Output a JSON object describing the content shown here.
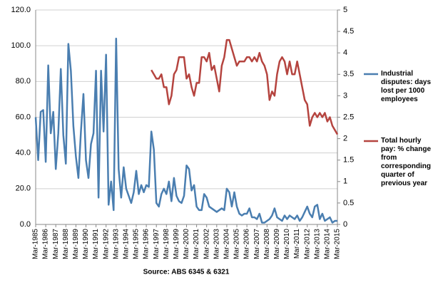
{
  "chart_data": {
    "type": "line",
    "source": "Source: ABS 6345 & 6321",
    "categories": [
      "Mar-1985",
      null,
      null,
      null,
      "Mar-1986",
      null,
      null,
      null,
      "Mar-1987",
      null,
      null,
      null,
      "Mar-1988",
      null,
      null,
      null,
      "Mar-1989",
      null,
      null,
      null,
      "Mar-1990",
      null,
      null,
      null,
      "Mar-1991",
      null,
      null,
      null,
      "Mar-1992",
      null,
      null,
      null,
      "Mar-1993",
      null,
      null,
      null,
      "Mar-1994",
      null,
      null,
      null,
      "Mar-1995",
      null,
      null,
      null,
      "Mar-1996",
      null,
      null,
      null,
      "Mar-1997",
      null,
      null,
      null,
      "Mar-1998",
      null,
      null,
      null,
      "Mar-1999",
      null,
      null,
      null,
      "Mar-2000",
      null,
      null,
      null,
      "Mar-2001",
      null,
      null,
      null,
      "Mar-2002",
      null,
      null,
      null,
      "Mar-2003",
      null,
      null,
      null,
      "Mar-2004",
      null,
      null,
      null,
      "Mar-2005",
      null,
      null,
      null,
      "Mar-2006",
      null,
      null,
      null,
      "Mar-2007",
      null,
      null,
      null,
      "Mar-2008",
      null,
      null,
      null,
      "Mar-2009",
      null,
      null,
      null,
      "Mar-2010",
      null,
      null,
      null,
      "Mar-2011",
      null,
      null,
      null,
      "Mar-2012",
      null,
      null,
      null,
      "Mar-2013",
      null,
      null,
      null,
      "Mar-2014",
      null,
      null,
      null,
      "Mar-2015"
    ],
    "series": [
      {
        "name": "Industrial disputes: days lost per 1000 employees",
        "color": "#4a7eb0",
        "values": [
          60,
          36,
          63,
          64,
          35,
          89,
          51,
          63,
          31,
          51,
          87,
          50,
          34,
          101,
          86,
          55,
          38,
          26,
          52,
          73,
          36,
          26,
          45,
          51,
          86,
          15,
          86,
          52,
          95,
          11,
          24,
          8,
          104,
          31,
          15,
          32,
          20,
          16,
          12,
          18,
          30,
          17,
          22,
          18,
          22,
          21,
          52,
          42,
          12,
          10,
          17,
          20,
          17,
          24,
          13,
          26,
          16,
          13,
          12,
          16,
          33,
          31,
          19,
          22,
          10,
          8,
          8,
          17,
          15,
          10,
          9,
          8,
          7,
          8,
          9,
          8,
          20,
          18,
          10,
          18,
          10,
          6,
          5,
          6,
          6,
          9,
          4,
          4,
          3,
          6,
          1,
          1,
          2,
          3,
          5,
          9,
          4,
          3,
          2,
          5,
          3,
          5,
          4,
          3,
          5,
          2,
          4,
          7,
          10,
          6,
          4,
          10,
          11,
          3,
          6,
          2,
          3,
          4,
          1,
          2,
          2
        ]
      },
      {
        "name": "Total hourly pay: % change from corresponding quarter of previous year",
        "color": "#b5443f",
        "axis": "y2",
        "values": [
          null,
          null,
          null,
          null,
          null,
          null,
          null,
          null,
          null,
          null,
          null,
          null,
          null,
          null,
          null,
          null,
          null,
          null,
          null,
          null,
          null,
          null,
          null,
          null,
          null,
          null,
          null,
          null,
          null,
          null,
          null,
          null,
          null,
          null,
          null,
          null,
          null,
          null,
          null,
          null,
          null,
          null,
          null,
          null,
          null,
          null,
          3.6,
          3.5,
          3.4,
          3.4,
          3.5,
          3.2,
          3.2,
          2.8,
          3.0,
          3.5,
          3.6,
          3.9,
          3.9,
          3.9,
          3.4,
          3.5,
          3.2,
          3.0,
          3.3,
          3.3,
          3.9,
          3.9,
          3.8,
          4.0,
          3.6,
          3.7,
          3.4,
          3.1,
          3.7,
          3.9,
          4.3,
          4.3,
          4.1,
          3.9,
          3.7,
          3.8,
          3.8,
          3.8,
          3.9,
          3.9,
          3.8,
          3.9,
          3.8,
          4.0,
          3.8,
          3.7,
          3.5,
          2.9,
          3.1,
          3.0,
          3.5,
          3.8,
          3.9,
          3.8,
          3.5,
          3.8,
          3.5,
          3.5,
          3.8,
          3.5,
          3.2,
          2.9,
          2.8,
          2.3,
          2.5,
          2.6,
          2.5,
          2.6,
          2.5,
          2.6,
          2.4,
          2.5,
          2.3,
          2.2,
          2.1
        ]
      }
    ],
    "ylim": [
      0,
      120
    ],
    "yticks": [
      {
        "value": 0,
        "label": "0.0"
      },
      {
        "value": 20,
        "label": "20.0"
      },
      {
        "value": 40,
        "label": "40.0"
      },
      {
        "value": 60,
        "label": "60.0"
      },
      {
        "value": 80,
        "label": "80.0"
      },
      {
        "value": 100,
        "label": "100.0"
      },
      {
        "value": 120,
        "label": "120.0"
      }
    ],
    "y2lim": [
      0,
      5
    ],
    "y2ticks": [
      0,
      0.5,
      1,
      1.5,
      2,
      2.5,
      3,
      3.5,
      4,
      4.5,
      5
    ],
    "grid": true,
    "legend": "right"
  }
}
